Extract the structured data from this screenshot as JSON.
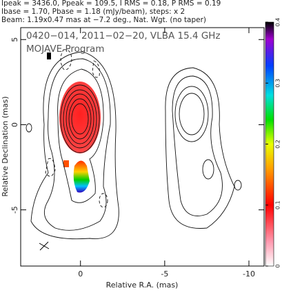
{
  "chart_data": {
    "type": "contour",
    "header": [
      "Ipeak = 3436.0, Ppeak = 109.5, I RMS = 0.18, P RMS = 0.19",
      "Ibase = 1.70, Pbase = 1.18 (mJy/beam), steps: x 2",
      "Beam: 1.19x0.47 mas at −7.2 deg., Nat. Wgt. (no taper)"
    ],
    "title": "0420−014, 2011−02−20, VLBA 15.4 GHz",
    "subtitle": "MOJAVE Program",
    "x_label": "Relative R.A. (mas)",
    "y_label": "Relative Declination (mas)",
    "xlim": [
      3.55,
      -10.9
    ],
    "xticks": [
      0,
      -5,
      -10
    ],
    "ylim": [
      -8.3,
      5.7
    ],
    "yticks": [
      -5,
      0,
      5
    ],
    "colorbar_lim": [
      0,
      0.4
    ],
    "colorbar_ticks": [
      0,
      0.1,
      0.2,
      0.3,
      0.4
    ]
  }
}
